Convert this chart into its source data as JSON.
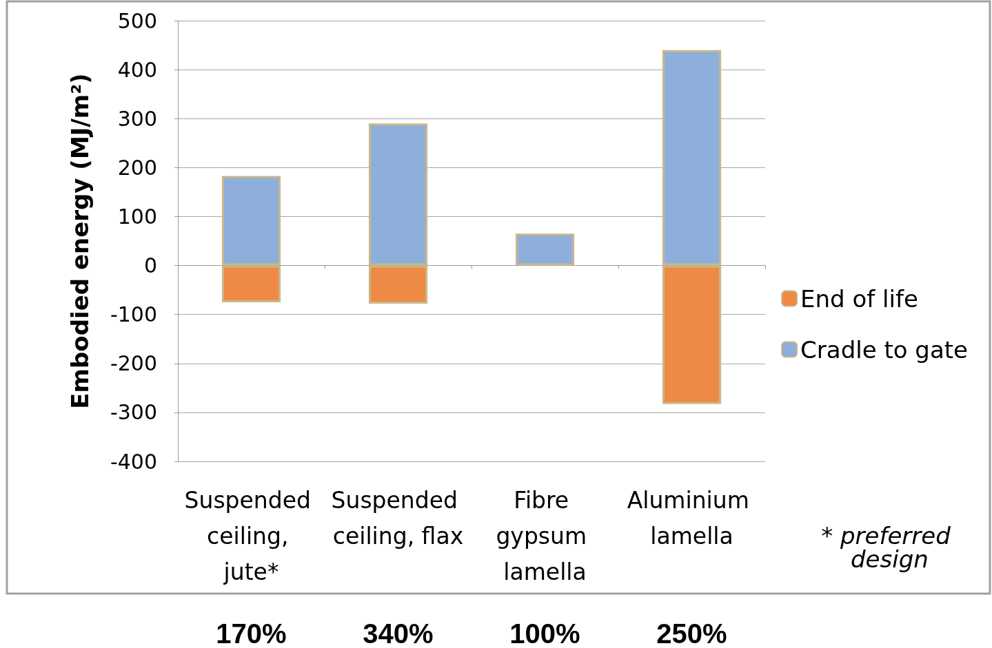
{
  "chart_data": {
    "type": "bar",
    "stacked": true,
    "ylabel": "Embodied energy (MJ/m²)",
    "categories": [
      "Suspended ceiling, jute*",
      "Suspended ceiling, flax",
      "Fibre gypsum lamella",
      "Aluminium lamella"
    ],
    "series": [
      {
        "name": "End of life",
        "color": "#ee8a45",
        "values": [
          -75,
          -78,
          null,
          -283
        ]
      },
      {
        "name": "Cradle to gate",
        "color": "#8eaedb",
        "values": [
          183,
          290,
          65,
          440
        ]
      }
    ],
    "ylim": [
      -400,
      500
    ],
    "yticks": [
      -400,
      -300,
      -200,
      -100,
      0,
      100,
      200,
      300,
      400,
      500
    ],
    "grid": "y",
    "legend": "right",
    "annotations": [
      "170%",
      "340%",
      "100%",
      "250%",
      "* preferred design"
    ]
  }
}
